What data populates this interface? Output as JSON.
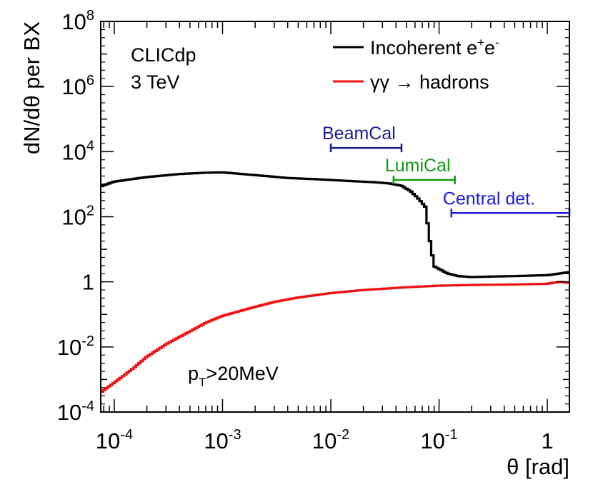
{
  "chart_data": {
    "type": "line",
    "title": "",
    "xlabel": "θ [rad]",
    "ylabel": "dN/dθ per BX",
    "x_scale": "log",
    "y_scale": "log",
    "xlim": [
      7.5e-05,
      1.6
    ],
    "ylim": [
      0.0001,
      100000000
    ],
    "grid": false,
    "legend_position": "top-right",
    "x_ticks": [
      {
        "value": 0.0001,
        "base": "10",
        "exp": "-4"
      },
      {
        "value": 0.001,
        "base": "10",
        "exp": "-3"
      },
      {
        "value": 0.01,
        "base": "10",
        "exp": "-2"
      },
      {
        "value": 0.1,
        "base": "10",
        "exp": "-1"
      },
      {
        "value": 1,
        "base": "1",
        "exp": ""
      }
    ],
    "y_ticks": [
      {
        "value": 0.0001,
        "base": "10",
        "exp": "-4"
      },
      {
        "value": 0.01,
        "base": "10",
        "exp": "-2"
      },
      {
        "value": 1,
        "base": "1",
        "exp": ""
      },
      {
        "value": 100,
        "base": "10",
        "exp": "2"
      },
      {
        "value": 10000,
        "base": "10",
        "exp": "4"
      },
      {
        "value": 1000000,
        "base": "10",
        "exp": "6"
      },
      {
        "value": 100000000,
        "base": "10",
        "exp": "8"
      }
    ],
    "series": [
      {
        "name": "Incoherent e+e-",
        "color": "#000000",
        "x": [
          7.5e-05,
          0.0001,
          0.0002,
          0.0004,
          0.0007,
          0.001,
          0.002,
          0.004,
          0.008,
          0.015,
          0.025,
          0.035,
          0.045,
          0.055,
          0.065,
          0.075,
          0.082,
          0.09,
          0.1,
          0.12,
          0.15,
          0.2,
          0.3,
          0.5,
          0.7,
          1.0,
          1.3,
          1.6
        ],
        "y": [
          850,
          1200,
          1650,
          2050,
          2250,
          2300,
          1900,
          1550,
          1400,
          1250,
          1150,
          1050,
          900,
          600,
          350,
          200,
          20,
          3,
          2.5,
          1.8,
          1.5,
          1.4,
          1.45,
          1.5,
          1.55,
          1.6,
          1.8,
          2.0
        ]
      },
      {
        "name": "γγ → hadrons",
        "color": "#ee1111",
        "x": [
          7.5e-05,
          0.0001,
          0.00015,
          0.0002,
          0.0003,
          0.0005,
          0.0007,
          0.001,
          0.002,
          0.003,
          0.005,
          0.01,
          0.02,
          0.05,
          0.1,
          0.2,
          0.5,
          1.0,
          1.3,
          1.6
        ],
        "y": [
          0.0004,
          0.0008,
          0.0022,
          0.005,
          0.012,
          0.03,
          0.055,
          0.09,
          0.17,
          0.24,
          0.33,
          0.45,
          0.56,
          0.68,
          0.76,
          0.8,
          0.83,
          0.87,
          1.0,
          0.93
        ]
      }
    ],
    "legend": [
      {
        "label": "Incoherent e",
        "sup1": "+",
        "mid": "e",
        "sup2": "-",
        "color": "#000000"
      },
      {
        "label": "γγ → hadrons",
        "color": "#ee1111"
      }
    ],
    "annotations": {
      "experiment": "CLICdp",
      "energy": "3 TeV",
      "cut_p": "p",
      "cut_sub": "T",
      "cut_rest": ">20MeV"
    },
    "ranges": [
      {
        "label": "BeamCal",
        "x_from": 0.01,
        "x_to": 0.045,
        "y": 13000,
        "color": "#1c1c8e"
      },
      {
        "label": "LumiCal",
        "x_from": 0.038,
        "x_to": 0.14,
        "y": 1350,
        "color": "#119911"
      },
      {
        "label": "Central det.",
        "x_from": 0.13,
        "x_to": 1.6,
        "y": 130,
        "color": "#1a1ae0"
      }
    ]
  }
}
